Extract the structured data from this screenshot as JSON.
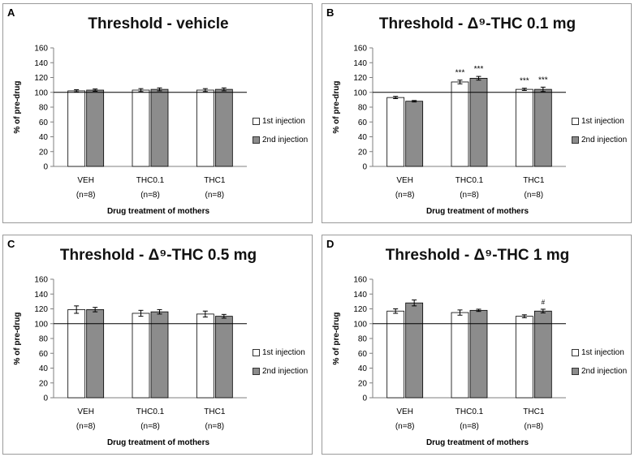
{
  "chart_data": [
    {
      "id": "A",
      "type": "bar",
      "panel_label": "A",
      "title": "Threshold - vehicle",
      "ylabel": "% of pre-drug",
      "xlabel": "Drug treatment of mothers",
      "ylim": [
        0,
        160
      ],
      "yticks": [
        0,
        20,
        40,
        60,
        80,
        100,
        120,
        140,
        160
      ],
      "reference_line": 100,
      "categories": [
        "VEH",
        "THC0.1",
        "THC1"
      ],
      "category_n": [
        "(n=8)",
        "(n=8)",
        "(n=8)"
      ],
      "series": [
        {
          "name": "1st injection",
          "color": "#ffffff",
          "values": [
            102,
            103,
            103
          ],
          "errors": [
            1.5,
            2,
            2
          ],
          "annotations": [
            "",
            "",
            ""
          ]
        },
        {
          "name": "2nd injection",
          "color": "#8c8c8c",
          "values": [
            103,
            104,
            104
          ],
          "errors": [
            1.5,
            2,
            2
          ],
          "annotations": [
            "",
            "",
            ""
          ]
        }
      ]
    },
    {
      "id": "B",
      "type": "bar",
      "panel_label": "B",
      "title": "Threshold - Δ⁹-THC 0.1 mg",
      "ylabel": "% of pre-drug",
      "xlabel": "Drug treatment of mothers",
      "ylim": [
        0,
        160
      ],
      "yticks": [
        0,
        20,
        40,
        60,
        80,
        100,
        120,
        140,
        160
      ],
      "reference_line": 100,
      "categories": [
        "VEH",
        "THC0.1",
        "THC1"
      ],
      "category_n": [
        "(n=8)",
        "(n=8)",
        "(n=8)"
      ],
      "series": [
        {
          "name": "1st injection",
          "color": "#ffffff",
          "values": [
            93,
            114,
            104
          ],
          "errors": [
            1.5,
            2.5,
            1.5
          ],
          "annotations": [
            "",
            "***",
            "***"
          ]
        },
        {
          "name": "2nd injection",
          "color": "#8c8c8c",
          "values": [
            88,
            119,
            104
          ],
          "errors": [
            1,
            2.5,
            3
          ],
          "annotations": [
            "",
            "***",
            "***"
          ]
        }
      ]
    },
    {
      "id": "C",
      "type": "bar",
      "panel_label": "C",
      "title": "Threshold - Δ⁹-THC 0.5 mg",
      "ylabel": "% of pre-drug",
      "xlabel": "Drug treatment of mothers",
      "ylim": [
        0,
        160
      ],
      "yticks": [
        0,
        20,
        40,
        60,
        80,
        100,
        120,
        140,
        160
      ],
      "reference_line": 100,
      "categories": [
        "VEH",
        "THC0.1",
        "THC1"
      ],
      "category_n": [
        "(n=8)",
        "(n=8)",
        "(n=8)"
      ],
      "series": [
        {
          "name": "1st injection",
          "color": "#ffffff",
          "values": [
            119,
            114,
            113
          ],
          "errors": [
            5,
            4,
            4
          ],
          "annotations": [
            "",
            "",
            ""
          ]
        },
        {
          "name": "2nd injection",
          "color": "#8c8c8c",
          "values": [
            119,
            116,
            110
          ],
          "errors": [
            3,
            3,
            2.5
          ],
          "annotations": [
            "",
            "",
            ""
          ]
        }
      ]
    },
    {
      "id": "D",
      "type": "bar",
      "panel_label": "D",
      "title": "Threshold - Δ⁹-THC 1 mg",
      "ylabel": "% of pre-drug",
      "xlabel": "Drug treatment of mothers",
      "ylim": [
        0,
        160
      ],
      "yticks": [
        0,
        20,
        40,
        60,
        80,
        100,
        120,
        140,
        160
      ],
      "reference_line": 100,
      "categories": [
        "VEH",
        "THC0.1",
        "THC1"
      ],
      "category_n": [
        "(n=8)",
        "(n=8)",
        "(n=8)"
      ],
      "series": [
        {
          "name": "1st injection",
          "color": "#ffffff",
          "values": [
            117,
            115,
            110
          ],
          "errors": [
            3,
            3.5,
            2
          ],
          "annotations": [
            "",
            "",
            ""
          ]
        },
        {
          "name": "2nd injection",
          "color": "#8c8c8c",
          "values": [
            128,
            118,
            117
          ],
          "errors": [
            4,
            1.5,
            2.5
          ],
          "annotations": [
            "",
            "",
            "#"
          ]
        }
      ]
    }
  ]
}
